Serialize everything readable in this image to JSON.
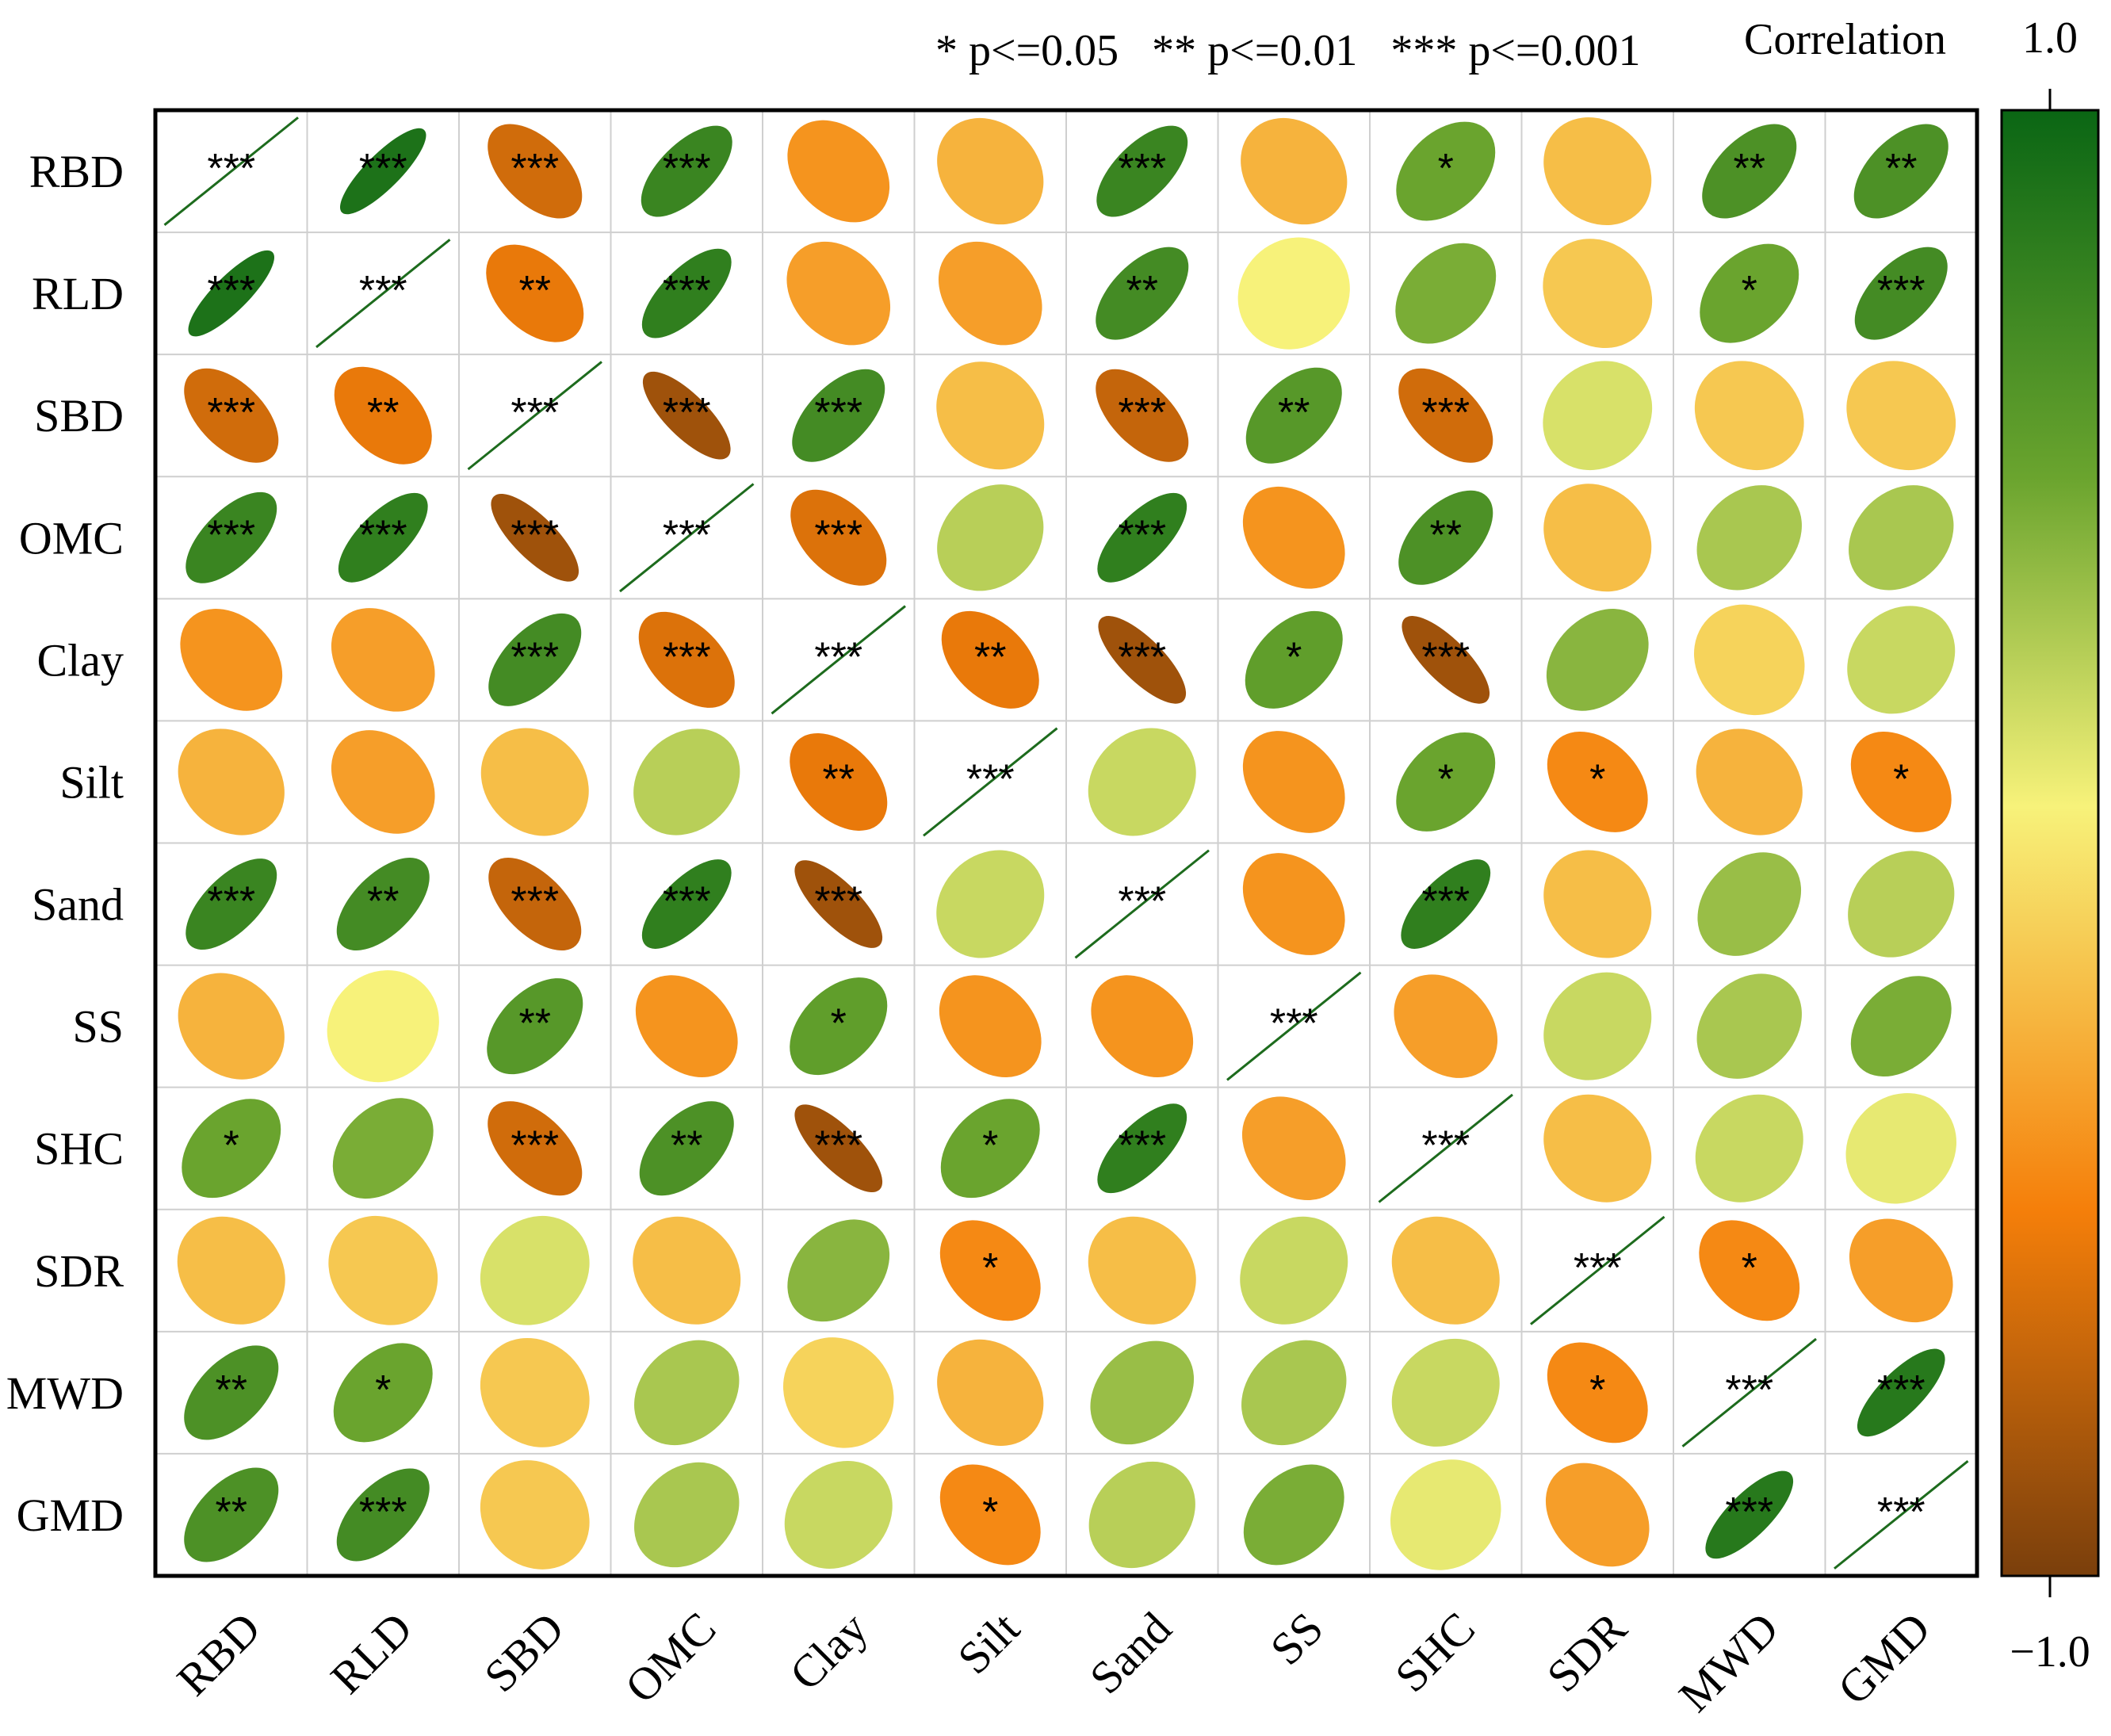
{
  "chart_data": {
    "type": "heatmap",
    "variables": [
      "RBD",
      "RLD",
      "SBD",
      "OMC",
      "Clay",
      "Silt",
      "Sand",
      "SS",
      "SHC",
      "SDR",
      "MWD",
      "GMD"
    ],
    "values": [
      [
        1.0,
        0.9,
        -0.65,
        0.75,
        -0.4,
        -0.25,
        0.75,
        -0.25,
        0.5,
        -0.2,
        0.65,
        0.65
      ],
      [
        0.9,
        1.0,
        -0.55,
        0.8,
        -0.35,
        -0.35,
        0.7,
        0.05,
        0.45,
        -0.15,
        0.5,
        0.7
      ],
      [
        -0.65,
        -0.55,
        1.0,
        -0.85,
        0.7,
        -0.2,
        -0.7,
        0.6,
        -0.65,
        0.15,
        -0.15,
        -0.15
      ],
      [
        0.75,
        0.8,
        -0.85,
        1.0,
        -0.6,
        0.25,
        0.8,
        -0.4,
        0.65,
        -0.2,
        0.3,
        0.3
      ],
      [
        -0.4,
        -0.35,
        0.7,
        -0.6,
        1.0,
        -0.55,
        -0.85,
        0.55,
        -0.85,
        0.4,
        -0.1,
        0.2
      ],
      [
        -0.25,
        -0.35,
        -0.2,
        0.25,
        -0.55,
        1.0,
        0.2,
        -0.4,
        0.5,
        -0.45,
        -0.25,
        -0.45
      ],
      [
        0.75,
        0.7,
        -0.7,
        0.8,
        -0.85,
        0.2,
        1.0,
        -0.4,
        0.8,
        -0.2,
        0.35,
        0.25
      ],
      [
        -0.25,
        0.05,
        0.6,
        -0.4,
        0.55,
        -0.4,
        -0.4,
        1.0,
        -0.35,
        0.2,
        0.3,
        0.45
      ],
      [
        0.5,
        0.45,
        -0.65,
        0.65,
        -0.85,
        0.5,
        0.8,
        -0.35,
        1.0,
        -0.2,
        0.2,
        0.1
      ],
      [
        -0.2,
        -0.15,
        0.15,
        -0.2,
        0.4,
        -0.45,
        -0.2,
        0.2,
        -0.2,
        1.0,
        -0.45,
        -0.35
      ],
      [
        0.65,
        0.5,
        -0.15,
        0.3,
        -0.1,
        -0.25,
        0.35,
        0.3,
        0.2,
        -0.45,
        1.0,
        0.85
      ],
      [
        0.65,
        0.7,
        -0.15,
        0.3,
        0.2,
        -0.45,
        0.25,
        0.45,
        0.1,
        -0.35,
        0.85,
        1.0
      ]
    ],
    "significance": [
      [
        "***",
        "***",
        "***",
        "***",
        "",
        "",
        "***",
        "",
        "*",
        "",
        "**",
        "**"
      ],
      [
        "***",
        "***",
        "**",
        "***",
        "",
        "",
        "**",
        "",
        "",
        "",
        "*",
        "***"
      ],
      [
        "***",
        "**",
        "***",
        "***",
        "***",
        "",
        "***",
        "**",
        "***",
        "",
        "",
        ""
      ],
      [
        "***",
        "***",
        "***",
        "***",
        "***",
        "",
        "***",
        "",
        "**",
        "",
        "",
        ""
      ],
      [
        "",
        "",
        "***",
        "***",
        "***",
        "**",
        "***",
        "*",
        "***",
        "",
        "",
        ""
      ],
      [
        "",
        "",
        "",
        "",
        "**",
        "***",
        "",
        "",
        "*",
        "*",
        "",
        "*"
      ],
      [
        "***",
        "**",
        "***",
        "***",
        "***",
        "",
        "***",
        "",
        "***",
        "",
        "",
        ""
      ],
      [
        "",
        "",
        "**",
        "",
        "*",
        "",
        "",
        "***",
        "",
        "",
        "",
        ""
      ],
      [
        "*",
        "",
        "***",
        "**",
        "***",
        "*",
        "***",
        "",
        "***",
        "",
        "",
        ""
      ],
      [
        "",
        "",
        "",
        "",
        "",
        "*",
        "",
        "",
        "",
        "***",
        "*",
        ""
      ],
      [
        "**",
        "*",
        "",
        "",
        "",
        "",
        "",
        "",
        "",
        "*",
        "***",
        "***"
      ],
      [
        "**",
        "***",
        "",
        "",
        "",
        "*",
        "",
        "",
        "",
        "",
        "***",
        "***"
      ]
    ],
    "significance_legend": "* p<=0.05   ** p<=0.01   *** p<=0.001",
    "colorbar": {
      "title": "Correlation",
      "max_label": "1.0",
      "min_label": "−1.0",
      "range": [
        -1,
        1
      ],
      "stops": [
        {
          "value": 1.0,
          "color": "#0a6614"
        },
        {
          "value": 0.5,
          "color": "#6aa42e"
        },
        {
          "value": 0.05,
          "color": "#f7f27a"
        },
        {
          "value": -0.5,
          "color": "#f57f0a"
        },
        {
          "value": -1.0,
          "color": "#7a3f0c"
        }
      ]
    },
    "grid": true,
    "legend_placement": "right"
  }
}
